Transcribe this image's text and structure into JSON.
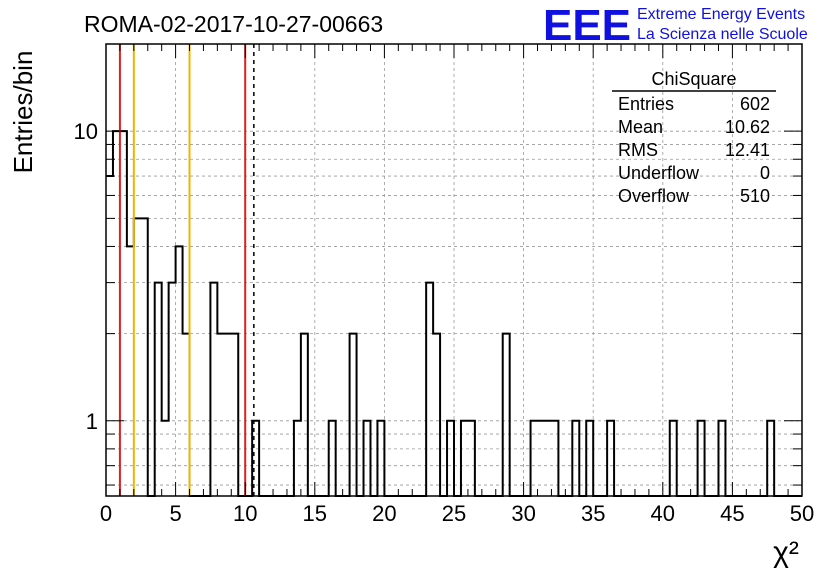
{
  "title": "ROMA-02-2017-10-27-00663",
  "logo": {
    "mark": "EEE",
    "line1": "Extreme Energy Events",
    "line2": "La Scienza nelle Scuole",
    "color": "#1010e0"
  },
  "stats_box": {
    "name": "ChiSquare",
    "rows": [
      {
        "label": "Entries",
        "value": "602"
      },
      {
        "label": "Mean",
        "value": "10.62"
      },
      {
        "label": "RMS",
        "value": "12.41"
      },
      {
        "label": "Underflow",
        "value": "0"
      },
      {
        "label": "Overflow",
        "value": "510"
      }
    ]
  },
  "chart_data": {
    "type": "bar",
    "histogram_style": "step",
    "xlabel": "χ²",
    "ylabel": "Entries/bin",
    "xlim": [
      0,
      50
    ],
    "ylim": [
      0.55,
      20
    ],
    "yscale": "log",
    "grid": true,
    "x_ticks": [
      0,
      5,
      10,
      15,
      20,
      25,
      30,
      35,
      40,
      45,
      50
    ],
    "x_tick_labels": [
      "0",
      "5",
      "10",
      "15",
      "20",
      "25",
      "30",
      "35",
      "40",
      "45",
      "50"
    ],
    "y_ticks": [
      1,
      10
    ],
    "y_tick_labels": [
      "1",
      "10"
    ],
    "bin_width": 0.5,
    "bin_edges_start": 0,
    "values": [
      7,
      10,
      10,
      4,
      5,
      5,
      0,
      3,
      1,
      3,
      4,
      2,
      0,
      0,
      0,
      3,
      2,
      2,
      2,
      0,
      0,
      1,
      0,
      0,
      0,
      0,
      0,
      1,
      2,
      0,
      0,
      0,
      1,
      0,
      0,
      2,
      0,
      1,
      0,
      1,
      0,
      0,
      0,
      0,
      0,
      0,
      3,
      2,
      0,
      1,
      0,
      1,
      1,
      0,
      0,
      0,
      0,
      2,
      0,
      0,
      0,
      1,
      1,
      1,
      1,
      0,
      0,
      1,
      0,
      1,
      0,
      0,
      1,
      0,
      0,
      0,
      0,
      0,
      0,
      0,
      0,
      1,
      0,
      0,
      0,
      1,
      0,
      0,
      1,
      0,
      0,
      0,
      0,
      0,
      0,
      1,
      0,
      0,
      0,
      0
    ],
    "vertical_lines": [
      {
        "x": 1,
        "color": "#e02020",
        "style": "solid"
      },
      {
        "x": 2,
        "color": "#f0b400",
        "style": "solid"
      },
      {
        "x": 6,
        "color": "#f0b400",
        "style": "solid"
      },
      {
        "x": 10,
        "color": "#e02020",
        "style": "solid"
      },
      {
        "x": 10.62,
        "color": "#000000",
        "style": "dashed"
      }
    ]
  }
}
